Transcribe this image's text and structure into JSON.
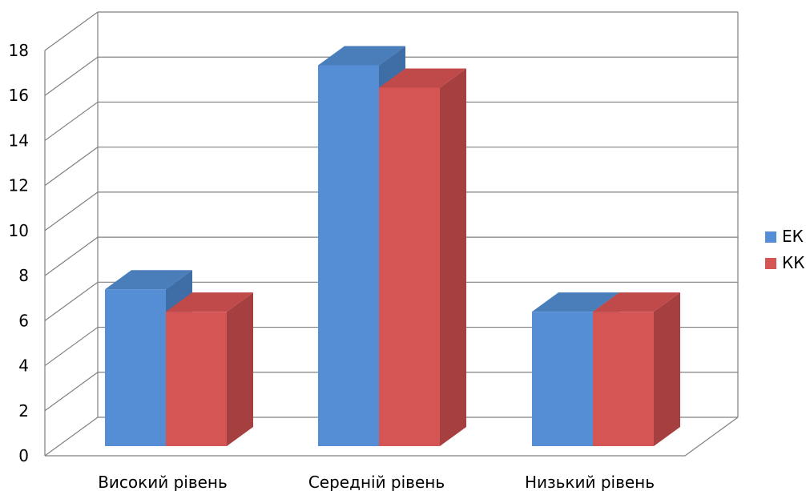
{
  "chart_data": {
    "type": "bar",
    "categories": [
      "Високий рівень",
      "Середній рівень",
      "Низький рівень"
    ],
    "series": [
      {
        "name": "ЕК",
        "values": [
          7,
          17,
          6
        ],
        "color": "#558ED5",
        "top_color": "#4A7EBB",
        "side_color": "#3F6DA6"
      },
      {
        "name": "КК",
        "values": [
          6,
          16,
          6
        ],
        "color": "#D55555",
        "top_color": "#C04A4A",
        "side_color": "#A64040"
      }
    ],
    "ylim": [
      0,
      18
    ],
    "yticks": [
      0,
      2,
      4,
      6,
      8,
      10,
      12,
      14,
      16,
      18
    ],
    "grid": true,
    "legend_position": "right",
    "style": "3d-clustered-column",
    "title": "",
    "xlabel": "",
    "ylabel": ""
  }
}
